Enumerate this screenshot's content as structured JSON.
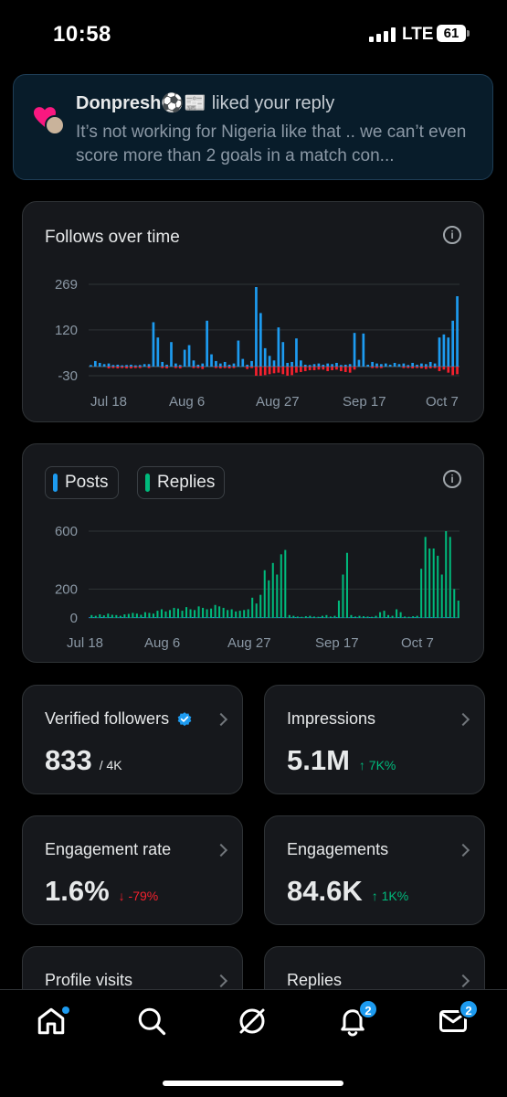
{
  "status": {
    "time": "10:58",
    "network": "LTE",
    "battery": "61"
  },
  "notification": {
    "name": "Donpresh⚽️📰",
    "action": "liked your reply",
    "text": "It’s not working for Nigeria like that .. we can’t even score more than 2 goals in a match con..."
  },
  "follows_card": {
    "title": "Follows over time",
    "chart_data": {
      "type": "bar",
      "yticks": [
        269,
        120,
        -30
      ],
      "ylim": [
        -30,
        269
      ],
      "xticks": [
        "Jul 18",
        "Aug 6",
        "Aug 27",
        "Sep 17",
        "Oct 7"
      ],
      "colors": {
        "positive": "#1d9bf0",
        "negative": "#f4212e"
      },
      "values": [
        5,
        18,
        12,
        8,
        10,
        5,
        6,
        4,
        5,
        6,
        4,
        5,
        8,
        8,
        145,
        95,
        15,
        6,
        80,
        10,
        5,
        55,
        70,
        20,
        6,
        10,
        150,
        40,
        18,
        10,
        15,
        6,
        10,
        85,
        25,
        6,
        18,
        260,
        175,
        60,
        35,
        20,
        128,
        80,
        12,
        15,
        92,
        20,
        6,
        5,
        8,
        10,
        6,
        10,
        8,
        12,
        5,
        6,
        8,
        110,
        22,
        108,
        6,
        15,
        10,
        8,
        10,
        6,
        12,
        8,
        10,
        5,
        12,
        6,
        10,
        8,
        15,
        10,
        95,
        105,
        95,
        150,
        230
      ],
      "negatives": [
        0,
        0,
        0,
        0,
        6,
        5,
        6,
        5,
        6,
        6,
        5,
        5,
        0,
        5,
        0,
        0,
        5,
        6,
        0,
        5,
        6,
        0,
        0,
        5,
        5,
        8,
        0,
        0,
        5,
        6,
        5,
        6,
        5,
        0,
        0,
        8,
        5,
        30,
        30,
        28,
        25,
        22,
        20,
        25,
        30,
        28,
        20,
        18,
        15,
        12,
        12,
        10,
        10,
        15,
        12,
        10,
        15,
        18,
        20,
        10,
        0,
        0,
        0,
        5,
        5,
        5,
        0,
        0,
        0,
        0,
        5,
        5,
        6,
        5,
        6,
        8,
        6,
        5,
        15,
        10,
        20,
        28,
        25
      ]
    }
  },
  "posts_card": {
    "legend": {
      "posts": "Posts",
      "replies": "Replies"
    },
    "colors": {
      "posts": "#1d9bf0",
      "replies": "#00ba7c"
    },
    "chart_data": {
      "type": "bar",
      "yticks": [
        600,
        200,
        0
      ],
      "ylim": [
        0,
        600
      ],
      "xticks": [
        "Jul 18",
        "Aug 6",
        "Aug 27",
        "Sep 17",
        "Oct 7"
      ],
      "series": [
        {
          "name": "Posts",
          "values": [
            4,
            5,
            3,
            6,
            4,
            5,
            3,
            4,
            5,
            4,
            3,
            5,
            4,
            6,
            3,
            4,
            5,
            4,
            3,
            4,
            5,
            4,
            3,
            5,
            4,
            6,
            4,
            3,
            5,
            4,
            6,
            5,
            4,
            3,
            5,
            4,
            3,
            4,
            5,
            4,
            3,
            4,
            5,
            4,
            3,
            4,
            5,
            4,
            3,
            4,
            5,
            4,
            3,
            4,
            4,
            3,
            5,
            4,
            3,
            4,
            5,
            4,
            3,
            4,
            5,
            4,
            3,
            4,
            5,
            4,
            3,
            4,
            5,
            4,
            3,
            5,
            4,
            3,
            4,
            5,
            4,
            3,
            4,
            5,
            4,
            3,
            4,
            5,
            4,
            3
          ]
        },
        {
          "name": "Replies",
          "values": [
            20,
            15,
            25,
            18,
            30,
            22,
            20,
            15,
            25,
            28,
            35,
            30,
            22,
            40,
            35,
            30,
            50,
            60,
            45,
            55,
            70,
            65,
            50,
            75,
            60,
            55,
            80,
            70,
            60,
            65,
            90,
            80,
            70,
            55,
            60,
            45,
            50,
            55,
            60,
            140,
            100,
            160,
            330,
            260,
            380,
            300,
            440,
            470,
            20,
            15,
            10,
            8,
            12,
            15,
            10,
            8,
            15,
            20,
            10,
            15,
            120,
            300,
            450,
            20,
            10,
            15,
            12,
            10,
            8,
            15,
            40,
            50,
            20,
            15,
            60,
            40,
            10,
            8,
            12,
            15,
            340,
            560,
            480,
            480,
            430,
            300,
            600,
            560,
            200,
            120
          ]
        }
      ]
    }
  },
  "metrics": {
    "verified": {
      "label": "Verified followers",
      "value": "833",
      "sub": "/ 4K"
    },
    "impressions": {
      "label": "Impressions",
      "value": "5.1M",
      "change": "↑ 7K%"
    },
    "engagement_rate": {
      "label": "Engagement rate",
      "value": "1.6%",
      "change": "↓ -79%"
    },
    "engagements": {
      "label": "Engagements",
      "value": "84.6K",
      "change": "↑ 1K%"
    },
    "profile_visits": {
      "label": "Profile visits"
    },
    "replies": {
      "label": "Replies"
    }
  },
  "nav": {
    "home_icon": "home-icon",
    "notifications_badge": "2",
    "messages_badge": "2"
  }
}
